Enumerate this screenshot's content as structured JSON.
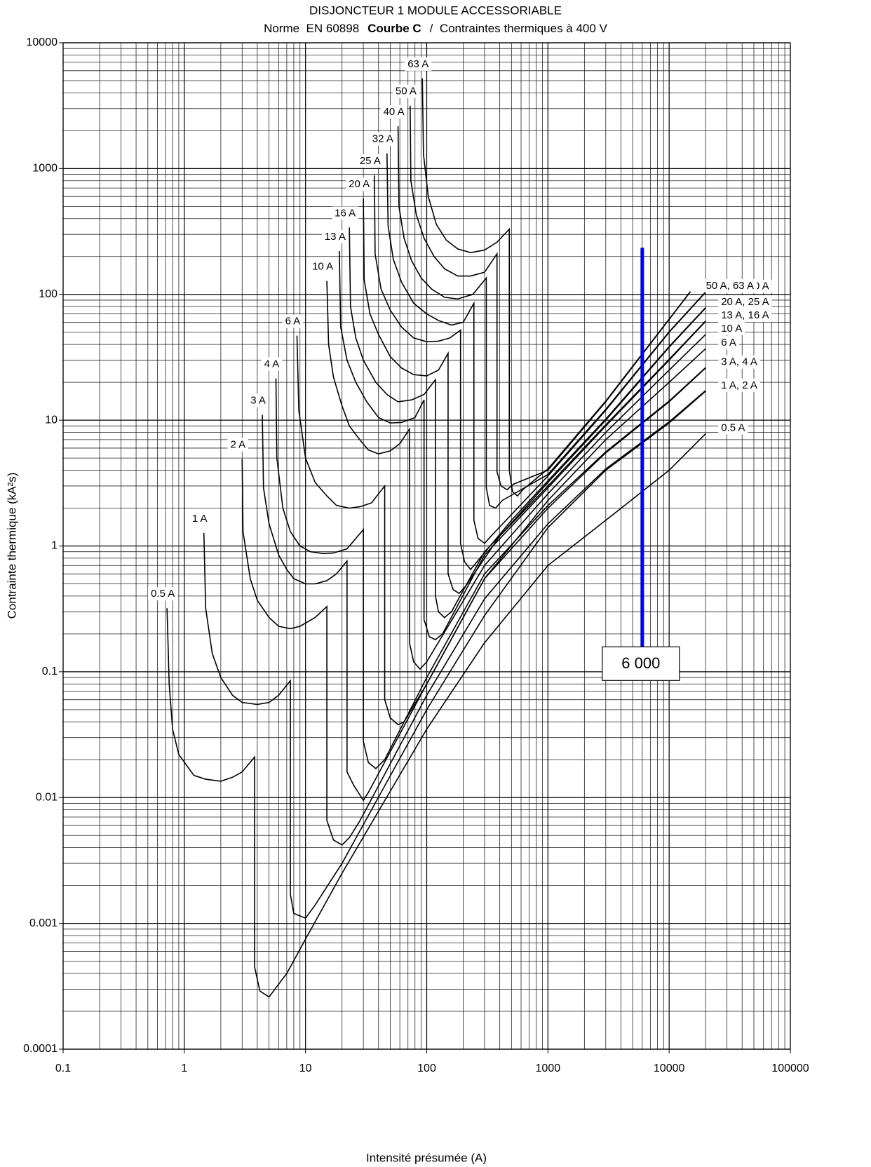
{
  "chart_data": {
    "type": "line",
    "title": "DISJONCTEUR 1 MODULE ACCESSORIABLE",
    "subtitle_parts": [
      "Norme  EN 60898",
      "Courbe C",
      "/  Contraintes thermiques à 400 V"
    ],
    "x_label": "Intensité présumée (A)",
    "y_label": "Contrainte thermique (kA²s)",
    "x_log": true,
    "y_log": true,
    "grid": true,
    "minor_grid": true,
    "line_color": "#000000",
    "xlim": [
      0.1,
      100000
    ],
    "xticks": [
      0.1,
      1,
      10,
      100,
      1000,
      10000,
      100000
    ],
    "ylim": [
      0.0001,
      10000
    ],
    "yticks": [
      0.0001,
      0.001,
      0.01,
      0.1,
      1,
      10,
      100,
      1000,
      10000
    ],
    "series": [
      {
        "name": "0.5 A",
        "end_label": "0.5 A",
        "x": [
          0.72,
          0.75,
          0.8,
          0.9,
          1.2,
          1.5,
          2,
          2.5,
          3,
          3.8,
          3.8,
          4.2,
          5,
          7,
          10,
          20,
          100,
          300,
          1000,
          3000,
          10000,
          20000
        ],
        "values": [
          0.32,
          0.08,
          0.035,
          0.022,
          0.015,
          0.014,
          0.0135,
          0.0145,
          0.016,
          0.021,
          0.00045,
          0.00029,
          0.00026,
          0.0004,
          0.00075,
          0.0025,
          0.035,
          0.17,
          0.7,
          1.6,
          4,
          7.8
        ]
      },
      {
        "name": "1 A",
        "end_label": "1 A, 2 A",
        "x": [
          1.45,
          1.5,
          1.7,
          2,
          2.5,
          3,
          4,
          5,
          6,
          7.5,
          7.5,
          8,
          10,
          12,
          20,
          100,
          300,
          1000,
          3000,
          10000,
          20000
        ],
        "values": [
          1.27,
          0.32,
          0.14,
          0.09,
          0.065,
          0.057,
          0.055,
          0.057,
          0.065,
          0.085,
          0.0017,
          0.0012,
          0.0011,
          0.0014,
          0.003,
          0.05,
          0.28,
          1.4,
          4,
          9.5,
          17
        ]
      },
      {
        "name": "2 A",
        "x": [
          3,
          3.05,
          3.5,
          4,
          5,
          6,
          7.5,
          9,
          12,
          15,
          15,
          17,
          20,
          23,
          28,
          100,
          300,
          1000,
          3000,
          10000,
          20000
        ],
        "values": [
          4.9,
          1.3,
          0.55,
          0.37,
          0.27,
          0.23,
          0.22,
          0.23,
          0.27,
          0.33,
          0.0066,
          0.0046,
          0.0042,
          0.0048,
          0.0065,
          0.065,
          0.38,
          1.5,
          4.1,
          9.7,
          17.2
        ]
      },
      {
        "name": "3 A",
        "end_label": "3 A, 4 A",
        "x": [
          4.4,
          4.5,
          5,
          6,
          7,
          8,
          10,
          12,
          15,
          18,
          22,
          22,
          25,
          30,
          33,
          100,
          300,
          1000,
          3000,
          10000,
          20000
        ],
        "values": [
          11,
          2.9,
          1.5,
          0.85,
          0.65,
          0.55,
          0.5,
          0.5,
          0.53,
          0.6,
          0.76,
          0.016,
          0.0125,
          0.0095,
          0.011,
          0.08,
          0.55,
          2.0,
          5.5,
          14,
          26
        ]
      },
      {
        "name": "4 A",
        "x": [
          5.7,
          5.8,
          6.5,
          7.5,
          9,
          11,
          14,
          17,
          22,
          30,
          30,
          33,
          38,
          45,
          100,
          300,
          1000,
          3000,
          10000,
          20000
        ],
        "values": [
          21.5,
          5,
          2,
          1.3,
          1.0,
          0.9,
          0.87,
          0.88,
          0.95,
          1.35,
          0.028,
          0.019,
          0.017,
          0.02,
          0.09,
          0.6,
          2.1,
          5.6,
          14.2,
          26.2
        ]
      },
      {
        "name": "6 A",
        "end_label": "6 A",
        "x": [
          8.5,
          8.8,
          10,
          12,
          15,
          18,
          23,
          28,
          35,
          45,
          45,
          50,
          58,
          65,
          100,
          300,
          1000,
          3000,
          10000,
          20000
        ],
        "values": [
          47,
          12,
          5,
          3.2,
          2.5,
          2.1,
          2.0,
          2.05,
          2.2,
          3,
          0.06,
          0.043,
          0.038,
          0.04,
          0.08,
          0.55,
          2.3,
          7,
          20,
          37
        ]
      },
      {
        "name": "10 A",
        "end_label": "10 A",
        "x": [
          15,
          15.5,
          17,
          20,
          23,
          28,
          33,
          40,
          50,
          60,
          72,
          72,
          78,
          88,
          100,
          300,
          1000,
          3000,
          10000,
          20000
        ],
        "values": [
          128,
          40,
          22,
          13,
          9,
          7,
          5.8,
          5.4,
          5.7,
          6.5,
          8.5,
          0.17,
          0.12,
          0.105,
          0.12,
          0.7,
          2.6,
          8,
          25,
          48
        ]
      },
      {
        "name": "13 A",
        "end_label": "13 A, 16 A",
        "x": [
          19,
          19.5,
          22,
          26,
          32,
          40,
          50,
          62,
          80,
          95,
          95,
          105,
          118,
          135,
          300,
          1000,
          3000,
          10000,
          20000
        ],
        "values": [
          221,
          55,
          30,
          20,
          14,
          10.5,
          9.5,
          9.6,
          10.5,
          14.5,
          0.26,
          0.19,
          0.18,
          0.2,
          0.85,
          2.9,
          9,
          30,
          61
        ]
      },
      {
        "name": "16 A",
        "x": [
          23,
          23.5,
          26,
          30,
          38,
          47,
          58,
          75,
          95,
          118,
          118,
          125,
          140,
          160,
          300,
          1000,
          3000,
          10000,
          20000
        ],
        "values": [
          340,
          80,
          45,
          30,
          20,
          16,
          14,
          14.5,
          16,
          21,
          0.4,
          0.3,
          0.27,
          0.3,
          0.9,
          3.0,
          9.2,
          30.5,
          61.5
        ]
      },
      {
        "name": "20 A",
        "end_label": "20 A, 25 A",
        "x": [
          30,
          30.5,
          34,
          40,
          50,
          62,
          78,
          100,
          125,
          150,
          150,
          165,
          185,
          210,
          400,
          1000,
          3000,
          10000,
          20000
        ],
        "values": [
          577,
          130,
          70,
          48,
          32,
          26,
          23,
          22.5,
          25,
          34,
          0.6,
          0.45,
          0.42,
          0.48,
          1.2,
          3.2,
          10,
          38,
          78
        ]
      },
      {
        "name": "25 A",
        "x": [
          37,
          37.5,
          42,
          50,
          62,
          78,
          100,
          125,
          155,
          190,
          190,
          205,
          230,
          260,
          500,
          1000,
          3000,
          10000,
          20000
        ],
        "values": [
          883,
          210,
          110,
          75,
          55,
          45,
          42,
          42.5,
          45,
          52,
          1.05,
          0.75,
          0.65,
          0.75,
          1.6,
          3.3,
          10.2,
          38.5,
          78.5
        ]
      },
      {
        "name": "32 A",
        "end_label": "32 A, 40 A",
        "x": [
          47,
          48,
          53,
          62,
          78,
          100,
          125,
          160,
          200,
          245,
          245,
          265,
          300,
          340,
          1000,
          3000,
          10000,
          20000
        ],
        "values": [
          1320,
          350,
          190,
          125,
          85,
          70,
          62,
          57,
          60,
          85,
          1.6,
          1.15,
          1.05,
          1.2,
          3.6,
          12,
          50,
          104
        ]
      },
      {
        "name": "40 A",
        "x": [
          58,
          59,
          65,
          75,
          90,
          110,
          140,
          180,
          240,
          310,
          310,
          330,
          370,
          420,
          1000,
          3000,
          10000,
          20000
        ],
        "values": [
          2170,
          500,
          280,
          185,
          135,
          110,
          95,
          92,
          100,
          135,
          2.9,
          2.1,
          2.0,
          2.3,
          3.7,
          12.2,
          50.5,
          104.5
        ]
      },
      {
        "name": "50 A",
        "end_label": "50 A, 63 A",
        "x": [
          73,
          74,
          82,
          95,
          115,
          140,
          180,
          230,
          300,
          380,
          380,
          410,
          460,
          520,
          1000,
          3000,
          15000
        ],
        "values": [
          3160,
          800,
          430,
          280,
          200,
          160,
          140,
          140,
          150,
          210,
          3.9,
          3.0,
          2.8,
          3.1,
          4.0,
          14,
          105
        ]
      },
      {
        "name": "63 A",
        "x": [
          92,
          94,
          103,
          120,
          145,
          180,
          230,
          300,
          380,
          480,
          480,
          510,
          560,
          620,
          1000,
          3000,
          15000
        ],
        "values": [
          5200,
          1300,
          600,
          360,
          270,
          230,
          215,
          225,
          260,
          330,
          4,
          2.7,
          2.5,
          2.8,
          4.1,
          14.2,
          105.5
        ]
      }
    ],
    "marker": {
      "x": 6000,
      "y_range": [
        0.15,
        235
      ],
      "label": {
        "value": 6000,
        "label": "6 000"
      },
      "color": "#0000ff"
    }
  }
}
